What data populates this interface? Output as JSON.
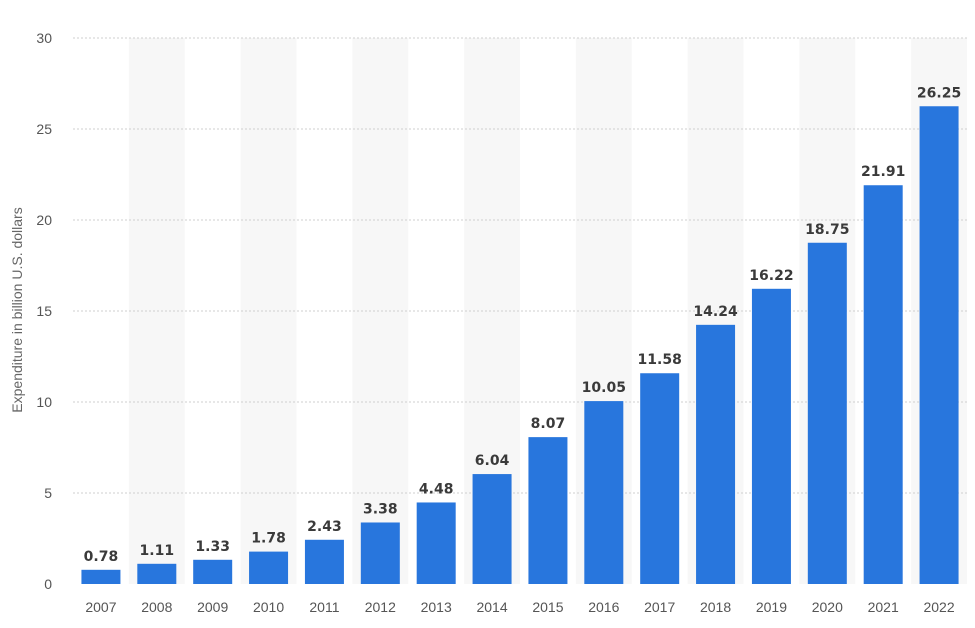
{
  "chart_data": {
    "type": "bar",
    "title": "",
    "xlabel": "",
    "ylabel": "Expenditure in billion U.S. dollars",
    "categories": [
      "2007",
      "2008",
      "2009",
      "2010",
      "2011",
      "2012",
      "2013",
      "2014",
      "2015",
      "2016",
      "2017",
      "2018",
      "2019",
      "2020",
      "2021",
      "2022"
    ],
    "values": [
      0.78,
      1.11,
      1.33,
      1.78,
      2.43,
      3.38,
      4.48,
      6.04,
      8.07,
      10.05,
      11.58,
      14.24,
      16.22,
      18.75,
      21.91,
      26.25
    ],
    "value_labels": [
      "0.78",
      "1.11",
      "1.33",
      "1.78",
      "2.43",
      "3.38",
      "4.48",
      "6.04",
      "8.07",
      "10.05",
      "11.58",
      "14.24",
      "16.22",
      "18.75",
      "21.91",
      "26.25"
    ],
    "ylim": [
      0,
      30
    ],
    "yticks": [
      "0",
      "5",
      "10",
      "15",
      "20",
      "25",
      "30"
    ],
    "grid": true,
    "alternating_column_bands": true,
    "colors": {
      "bar": "#2876dd",
      "band": "#f7f7f7",
      "grid": "#cfcfcf"
    }
  }
}
